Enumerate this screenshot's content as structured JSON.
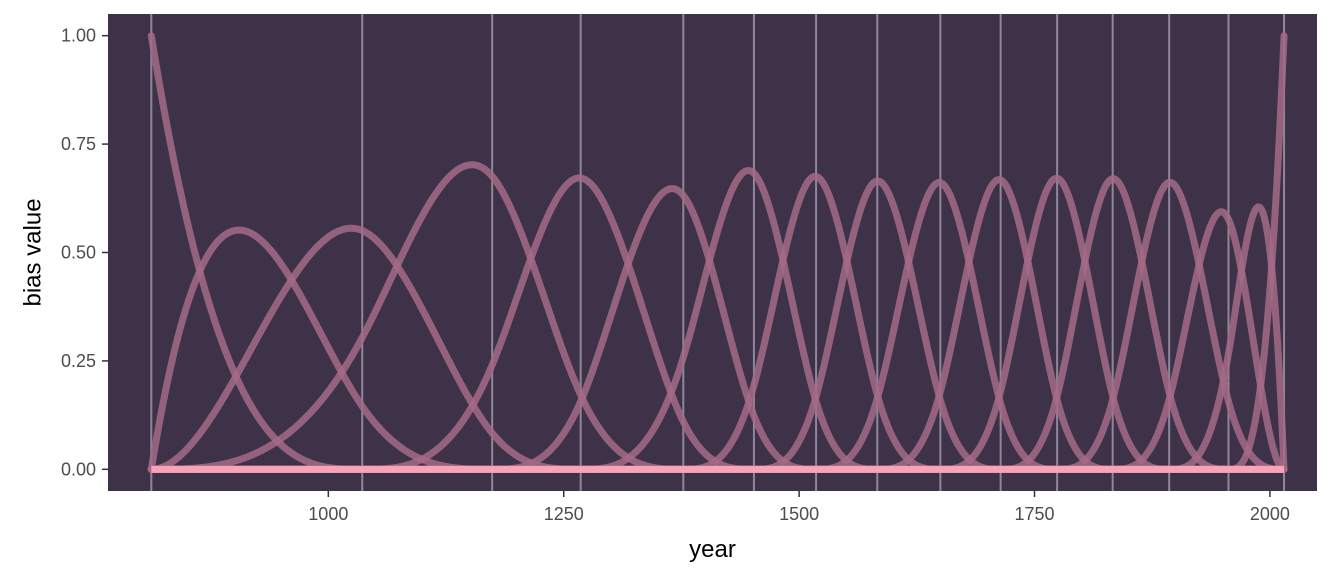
{
  "chart_data": {
    "type": "line",
    "title": "",
    "xlabel": "year",
    "ylabel": "bias value",
    "xlim": [
      766,
      2050
    ],
    "ylim": [
      -0.05,
      1.05
    ],
    "x_ticks": [
      1000,
      1250,
      1500,
      1750,
      2000
    ],
    "x_tick_labels": [
      "1000",
      "1250",
      "1500",
      "1750",
      "2000"
    ],
    "y_ticks": [
      0,
      0.25,
      0.5,
      0.75,
      1
    ],
    "y_tick_labels": [
      "0.00",
      "0.25",
      "0.50",
      "0.75",
      "1.00"
    ],
    "grid": false,
    "legend": "none",
    "knots": [
      812,
      1036,
      1174,
      1268,
      1377,
      1452,
      1518,
      1583,
      1650,
      1714,
      1774,
      1833,
      1893,
      1956,
      2015
    ],
    "spline_degree": 3,
    "peaks": [
      {
        "x": 812,
        "y": 1.0
      },
      {
        "x": 905,
        "y": 0.55
      },
      {
        "x": 1025,
        "y": 0.56
      },
      {
        "x": 1150,
        "y": 0.7
      },
      {
        "x": 1268,
        "y": 0.67
      },
      {
        "x": 1365,
        "y": 0.65
      },
      {
        "x": 1448,
        "y": 0.69
      },
      {
        "x": 1518,
        "y": 0.68
      },
      {
        "x": 1585,
        "y": 0.67
      },
      {
        "x": 1648,
        "y": 0.66
      },
      {
        "x": 1712,
        "y": 0.67
      },
      {
        "x": 1772,
        "y": 0.67
      },
      {
        "x": 1833,
        "y": 0.67
      },
      {
        "x": 1893,
        "y": 0.66
      },
      {
        "x": 1948,
        "y": 0.6
      },
      {
        "x": 1990,
        "y": 0.61
      },
      {
        "x": 2015,
        "y": 1.0
      }
    ],
    "colors": {
      "panel_background": "#3e3248",
      "knot_lines": "#9e95a6",
      "basis_curves": "#a46b87",
      "zero_line": "#f9a3bb",
      "tick_text": "#4d4d4d"
    }
  }
}
